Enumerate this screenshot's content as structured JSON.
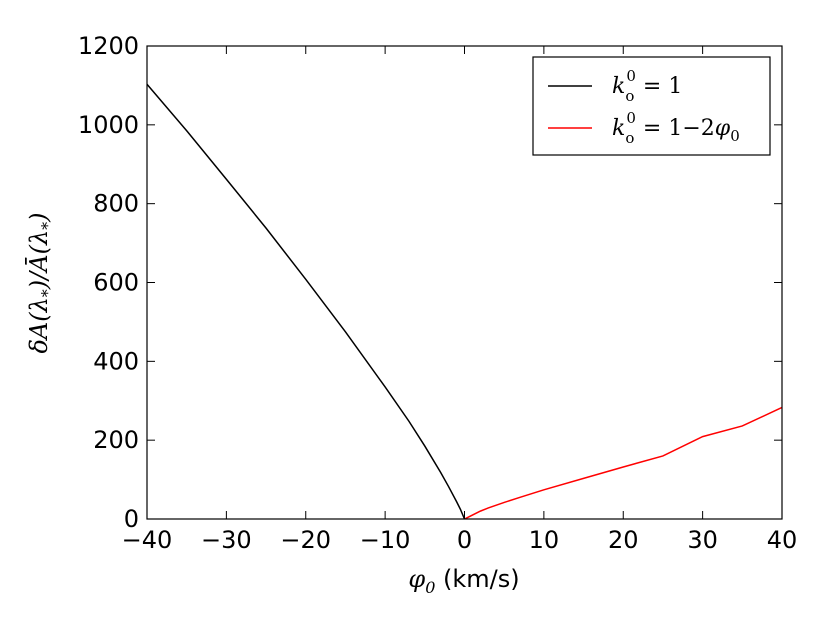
{
  "chart_data": {
    "type": "line",
    "title": "",
    "xlabel": "φ0 (km/s)",
    "ylabel": "δA(λ*)/Ā(λ*)",
    "xlim": [
      -40,
      40
    ],
    "ylim": [
      0,
      1200
    ],
    "x_ticks": [
      "−40",
      "−30",
      "−20",
      "−10",
      "0",
      "10",
      "20",
      "30",
      "40"
    ],
    "y_ticks": [
      "0",
      "200",
      "400",
      "600",
      "800",
      "1000",
      "1200"
    ],
    "grid": false,
    "legend_position": "top-right",
    "series": [
      {
        "name": "k_o^0 = 1",
        "color": "#000000",
        "x": [
          -40,
          -35,
          -30,
          -25,
          -20,
          -15,
          -10,
          -7,
          -5,
          -3,
          -2,
          -1,
          -0.5,
          0
        ],
        "y": [
          1103,
          985,
          862,
          738,
          608,
          475,
          335,
          248,
          185,
          118,
          82,
          44,
          24,
          0
        ]
      },
      {
        "name": "k_o^0 = 1−2φ0",
        "color": "#ff0000",
        "x": [
          0,
          0.5,
          1,
          2,
          3,
          5,
          7,
          10,
          15,
          20,
          25,
          30,
          35,
          40
        ],
        "y": [
          0,
          5,
          10,
          20,
          28,
          42,
          55,
          74,
          103,
          132,
          160,
          209,
          236,
          283
        ]
      }
    ]
  }
}
